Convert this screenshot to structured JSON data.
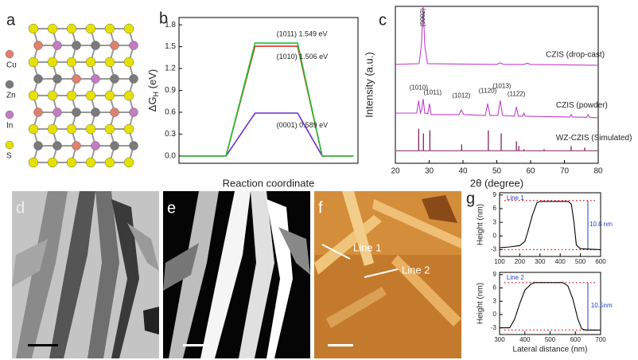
{
  "figure": {
    "panel_labels": [
      "a",
      "b",
      "c",
      "d",
      "e",
      "f",
      "g"
    ],
    "atoms": [
      {
        "name": "Cu",
        "color": "#e0806e"
      },
      {
        "name": "Zn",
        "color": "#7a7a7a"
      },
      {
        "name": "In",
        "color": "#c27cc0"
      },
      {
        "name": "S",
        "color": "#e6e000"
      }
    ],
    "line_labels": [
      "Line 1",
      "Line 2"
    ]
  },
  "chart_data": [
    {
      "type": "line",
      "xlabel": "Reaction coordinate",
      "ylabel": [
        "ΔG",
        "H",
        " (eV)"
      ],
      "x": [
        0.05,
        1.05,
        1.7,
        2.65,
        3.2,
        3.9
      ],
      "xlim": [
        0,
        4
      ],
      "ylim": [
        -0.1,
        1.9
      ],
      "yticks": [
        {
          "value": 0,
          "label": "0.0"
        },
        {
          "value": 0.3,
          "label": "0.3"
        },
        {
          "value": 0.6,
          "label": "0.6"
        },
        {
          "value": 0.9,
          "label": "0.9"
        },
        {
          "value": 1.2,
          "label": "1.2"
        },
        {
          "value": 1.5,
          "label": "1.5"
        },
        {
          "value": 1.8,
          "label": "1.8"
        }
      ],
      "series": [
        {
          "color": "#6a2fd0",
          "values": [
            0,
            0,
            0.589,
            0.589,
            0,
            0
          ]
        },
        {
          "color": "#d03a2a",
          "values": [
            0,
            0,
            1.506,
            1.506,
            0,
            0
          ]
        },
        {
          "color": "#22c030",
          "values": [
            0,
            0,
            1.549,
            1.549,
            0,
            0
          ]
        }
      ],
      "annotations": [
        {
          "text": "(1011) 1.549 eV",
          "x": 2.18,
          "y": 1.67
        },
        {
          "text": "(1010) 1.506 eV",
          "x": 2.18,
          "y": 1.36
        },
        {
          "text": "(0001) 0.589 eV",
          "x": 2.18,
          "y": 0.42
        }
      ]
    },
    {
      "type": "line",
      "xlabel": "2θ (degree)",
      "ylabel": "Intensity (a.u.)",
      "xlim": [
        20,
        80
      ],
      "xticks": [
        20,
        30,
        40,
        50,
        60,
        70,
        80
      ],
      "ylim": [
        0,
        100
      ],
      "series": [
        {
          "color": "#c040c8",
          "x": [
            20,
            27,
            27.7,
            28.2,
            28.7,
            29.5,
            50,
            51,
            52,
            58,
            59,
            60,
            80
          ],
          "values": [
            63,
            63.5,
            75,
            100,
            75,
            63.5,
            63,
            64,
            63,
            63,
            63.8,
            63,
            62.5
          ]
        },
        {
          "color": "#c040c8",
          "x": [
            20,
            26.3,
            26.9,
            27.4,
            27.8,
            28.2,
            28.7,
            29.6,
            30.1,
            30.6,
            38.8,
            39.5,
            40.2,
            46.6,
            47.3,
            48,
            50.3,
            51,
            51.7,
            55.2,
            55.8,
            56.4,
            57.6,
            58,
            58.4,
            71.6,
            72,
            72.4,
            76.6,
            77,
            77.4,
            80
          ],
          "values": [
            32,
            32,
            40,
            32,
            34,
            41,
            32,
            31.5,
            38,
            31,
            31,
            34,
            31,
            30.5,
            38,
            30.5,
            30.5,
            40,
            30.5,
            30,
            36,
            30,
            30,
            32,
            30,
            29.5,
            31,
            29.5,
            29.3,
            31,
            29.3,
            29
          ]
        },
        {
          "color": "#802060",
          "kind": "stem",
          "base": 8,
          "x": [
            26.9,
            28.3,
            30.2,
            39.6,
            47.5,
            51.3,
            55.8,
            56.5,
            58,
            64,
            72,
            76
          ],
          "values": [
            22,
            19,
            21,
            12,
            21,
            19,
            14,
            11,
            9,
            9,
            11,
            10
          ]
        }
      ],
      "annotations": [
        {
          "text": "(0002)",
          "x": 28.2,
          "y": 93,
          "rotate": -90
        },
        {
          "text": "(1010)",
          "x": 26.9,
          "y": 48
        },
        {
          "text": "(1011)",
          "x": 31,
          "y": 45
        },
        {
          "text": "(1012)",
          "x": 39.5,
          "y": 43
        },
        {
          "text": "(1120)",
          "x": 47.3,
          "y": 46
        },
        {
          "text": "(1013)",
          "x": 51.5,
          "y": 49
        },
        {
          "text": "(1122)",
          "x": 55.8,
          "y": 44
        },
        {
          "text": "CZIS (drop-cast)",
          "x": 64.5,
          "y": 69
        },
        {
          "text": "CZIS (powder)",
          "x": 67.5,
          "y": 37
        },
        {
          "text": "WZ-CZIS (Simulated)",
          "x": 67.5,
          "y": 16
        }
      ]
    },
    {
      "type": "line",
      "ylabel": "Height (nm)",
      "xlim": [
        100,
        600
      ],
      "xticks": [
        100,
        200,
        300,
        400,
        500,
        600
      ],
      "ylim": [
        -4.5,
        9.5
      ],
      "yticks": [
        -3,
        0,
        3,
        6,
        9
      ],
      "series": [
        {
          "color": "#000000",
          "x": [
            100,
            150,
            200,
            225,
            240,
            262,
            285,
            300,
            440,
            455,
            468,
            480,
            500,
            600
          ],
          "values": [
            -2.6,
            -2.4,
            -2.1,
            -1.2,
            1,
            4.5,
            7.3,
            7.6,
            7.6,
            7,
            3,
            -2,
            -2.8,
            -3
          ]
        }
      ],
      "ref_lines": [
        7.8,
        -3
      ],
      "annotations": [
        {
          "text": "Line 1",
          "x": 135,
          "y": 8.3
        },
        {
          "text": "10.8 nm",
          "x": 545,
          "y": 2.5
        }
      ]
    },
    {
      "type": "line",
      "ylabel": "Height (nm)",
      "xlabel": "Lateral distance (nm)",
      "xlim": [
        300,
        700
      ],
      "xticks": [
        300,
        400,
        500,
        600,
        700
      ],
      "ylim": [
        -4.5,
        9.5
      ],
      "yticks": [
        -3,
        0,
        3,
        6,
        9
      ],
      "series": [
        {
          "color": "#000000",
          "x": [
            300,
            340,
            360,
            380,
            400,
            425,
            440,
            550,
            570,
            590,
            610,
            625,
            640,
            700
          ],
          "values": [
            -3,
            -3,
            -1,
            2.5,
            5.5,
            6.9,
            7.2,
            7.2,
            6.5,
            3.5,
            -1,
            -3.2,
            -3.5,
            -3.5
          ]
        }
      ],
      "ref_lines": [
        7.2,
        -3.5
      ],
      "annotations": [
        {
          "text": "Line 2",
          "x": 328,
          "y": 8.3
        },
        {
          "text": "10.5nm",
          "x": 662,
          "y": 2
        }
      ]
    }
  ]
}
